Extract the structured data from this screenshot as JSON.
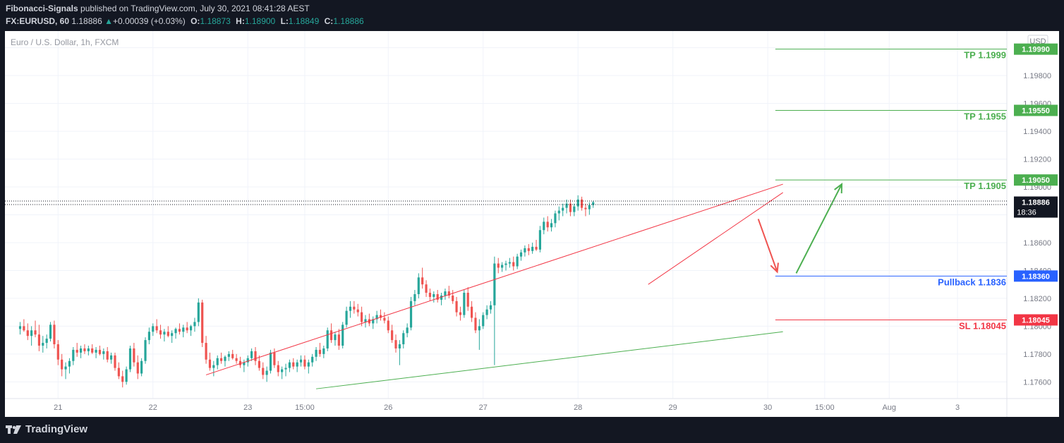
{
  "header": {
    "publisher": "Fibonacci-Signals",
    "published_text": "published on TradingView.com, July 30, 2021 08:41:28 AEST",
    "symbol": "FX:EURUSD, 60",
    "last": "1.18886",
    "arrow": "▲",
    "change": "+0.00039 (+0.03%)",
    "o_label": "O:",
    "o": "1.18873",
    "h_label": "H:",
    "h": "1.18900",
    "l_label": "L:",
    "l": "1.18849",
    "c_label": "C:",
    "c": "1.18886"
  },
  "symbol_desc": "Euro / U.S. Dollar, 1h, FXCM",
  "currency": "USD",
  "footer": {
    "logo_text": "TradingView",
    "logo_icon": "tradingview-logo-icon"
  },
  "colors": {
    "bull": "#26a69a",
    "bear": "#ef5350",
    "tp": "#4caf50",
    "pullback": "#2962ff",
    "sl": "#f23645",
    "channel": "#f23645",
    "support": "#4caf50",
    "axis_text": "#787b86",
    "grid": "#f0f3fa"
  },
  "chart_data": {
    "type": "candlestick",
    "symbol": "FX:EURUSD",
    "timeframe": "1h",
    "ylim": [
      1.1748,
      1.2012
    ],
    "y_ticks": [
      1.176,
      1.178,
      1.18,
      1.182,
      1.184,
      1.186,
      1.188,
      1.19,
      1.192,
      1.194,
      1.196,
      1.198,
      1.2
    ],
    "y_tick_labels": [
      "1.17600",
      "1.17800",
      "1.18000",
      "1.18200",
      "1.18400",
      "1.18600",
      "1.18800",
      "1.19000",
      "1.19200",
      "1.19400",
      "1.19600",
      "1.19800",
      "1.20000"
    ],
    "x_ticks": [
      {
        "label": "21",
        "x": 10
      },
      {
        "label": "22",
        "x": 35
      },
      {
        "label": "23",
        "x": 60
      },
      {
        "label": "15:00",
        "x": 75
      },
      {
        "label": "26",
        "x": 97
      },
      {
        "label": "27",
        "x": 122
      },
      {
        "label": "28",
        "x": 147
      },
      {
        "label": "29",
        "x": 172
      },
      {
        "label": "30",
        "x": 197
      },
      {
        "label": "15:00",
        "x": 212
      },
      {
        "label": "Aug",
        "x": 229
      },
      {
        "label": "3",
        "x": 247
      }
    ],
    "x_range": [
      -4,
      260
    ],
    "last_price": 1.18886,
    "countdown": "18:36",
    "levels": [
      {
        "name": "TP 1.1999",
        "value": 1.1999,
        "tag": "1.19990",
        "kind": "tp"
      },
      {
        "name": "TP 1.1955",
        "value": 1.1955,
        "tag": "1.19550",
        "kind": "tp"
      },
      {
        "name": "TP 1.1905",
        "value": 1.1905,
        "tag": "1.19050",
        "kind": "tp"
      },
      {
        "name": "Pullback 1.1836",
        "value": 1.1836,
        "tag": "1.18360",
        "kind": "pullback"
      },
      {
        "name": "SL 1.18045",
        "value": 1.18045,
        "tag": "1.18045",
        "kind": "sl"
      }
    ],
    "level_start_x": 199,
    "trendlines": [
      {
        "kind": "channel",
        "points": [
          [
            49,
            1.1765
          ],
          [
            201,
            1.1902
          ]
        ]
      },
      {
        "kind": "channel",
        "points": [
          [
            165.5,
            1.183
          ],
          [
            201,
            1.1896
          ]
        ]
      },
      {
        "kind": "support",
        "points": [
          [
            78,
            1.1755
          ],
          [
            201,
            1.1796
          ]
        ]
      }
    ],
    "arrows": [
      {
        "kind": "bear",
        "from": [
          194.5,
          1.1877
        ],
        "to": [
          199.5,
          1.1839
        ]
      },
      {
        "kind": "bull",
        "from": [
          204.5,
          1.1838
        ],
        "to": [
          216.5,
          1.1902
        ]
      }
    ],
    "candles": [
      [
        1.1798,
        1.1803,
        1.1794,
        1.18
      ],
      [
        1.18,
        1.1805,
        1.1796,
        1.1797
      ],
      [
        1.1797,
        1.1802,
        1.179,
        1.1793
      ],
      [
        1.1793,
        1.18,
        1.1786,
        1.1797
      ],
      [
        1.1797,
        1.1804,
        1.1792,
        1.1794
      ],
      [
        1.1794,
        1.1801,
        1.1782,
        1.1786
      ],
      [
        1.1786,
        1.1793,
        1.1781,
        1.1788
      ],
      [
        1.1788,
        1.1794,
        1.1784,
        1.1791
      ],
      [
        1.1791,
        1.1803,
        1.1789,
        1.1801
      ],
      [
        1.1801,
        1.1804,
        1.1784,
        1.1787
      ],
      [
        1.1787,
        1.179,
        1.1772,
        1.1776
      ],
      [
        1.1776,
        1.178,
        1.1764,
        1.1769
      ],
      [
        1.1769,
        1.1774,
        1.1762,
        1.1771
      ],
      [
        1.1771,
        1.1777,
        1.1766,
        1.1775
      ],
      [
        1.1775,
        1.1785,
        1.1772,
        1.1783
      ],
      [
        1.1783,
        1.1788,
        1.1778,
        1.1781
      ],
      [
        1.1781,
        1.1786,
        1.1777,
        1.1784
      ],
      [
        1.1784,
        1.1787,
        1.178,
        1.1782
      ],
      [
        1.1782,
        1.1786,
        1.1779,
        1.1784
      ],
      [
        1.1784,
        1.1787,
        1.178,
        1.1781
      ],
      [
        1.1781,
        1.1785,
        1.1777,
        1.1783
      ],
      [
        1.1783,
        1.1786,
        1.1779,
        1.178
      ],
      [
        1.178,
        1.1784,
        1.1776,
        1.1782
      ],
      [
        1.1782,
        1.1785,
        1.1774,
        1.1776
      ],
      [
        1.1776,
        1.1781,
        1.1773,
        1.1779
      ],
      [
        1.1779,
        1.1781,
        1.1768,
        1.177
      ],
      [
        1.177,
        1.1774,
        1.1762,
        1.1764
      ],
      [
        1.1764,
        1.1768,
        1.1756,
        1.176
      ],
      [
        1.176,
        1.1771,
        1.1758,
        1.1769
      ],
      [
        1.1769,
        1.1786,
        1.1767,
        1.1784
      ],
      [
        1.1784,
        1.1788,
        1.1771,
        1.1774
      ],
      [
        1.1774,
        1.1779,
        1.1762,
        1.1766
      ],
      [
        1.1766,
        1.1777,
        1.1764,
        1.1775
      ],
      [
        1.1775,
        1.1792,
        1.1773,
        1.179
      ],
      [
        1.179,
        1.1799,
        1.1787,
        1.1796
      ],
      [
        1.1796,
        1.1802,
        1.1793,
        1.18
      ],
      [
        1.18,
        1.1805,
        1.1795,
        1.1797
      ],
      [
        1.1797,
        1.1801,
        1.1791,
        1.1794
      ],
      [
        1.1794,
        1.1798,
        1.1789,
        1.1796
      ],
      [
        1.1796,
        1.18,
        1.1792,
        1.1793
      ],
      [
        1.1793,
        1.1797,
        1.1788,
        1.1795
      ],
      [
        1.1795,
        1.1799,
        1.1791,
        1.1798
      ],
      [
        1.1798,
        1.1802,
        1.1794,
        1.1796
      ],
      [
        1.1796,
        1.1801,
        1.1792,
        1.1799
      ],
      [
        1.1799,
        1.1803,
        1.1795,
        1.1797
      ],
      [
        1.1797,
        1.1801,
        1.1793,
        1.18
      ],
      [
        1.18,
        1.1806,
        1.1796,
        1.1803
      ],
      [
        1.1803,
        1.182,
        1.18,
        1.1817
      ],
      [
        1.1817,
        1.1819,
        1.1785,
        1.1788
      ],
      [
        1.1788,
        1.1793,
        1.1773,
        1.1776
      ],
      [
        1.1776,
        1.1781,
        1.1768,
        1.177
      ],
      [
        1.177,
        1.1775,
        1.1764,
        1.1772
      ],
      [
        1.1772,
        1.1779,
        1.1769,
        1.1777
      ],
      [
        1.1777,
        1.1781,
        1.1773,
        1.1775
      ],
      [
        1.1775,
        1.1779,
        1.1771,
        1.1778
      ],
      [
        1.1778,
        1.1782,
        1.1775,
        1.178
      ],
      [
        1.178,
        1.1783,
        1.1776,
        1.1777
      ],
      [
        1.1777,
        1.178,
        1.1773,
        1.1775
      ],
      [
        1.1775,
        1.1778,
        1.177,
        1.1772
      ],
      [
        1.1772,
        1.1776,
        1.1767,
        1.1774
      ],
      [
        1.1774,
        1.1779,
        1.1771,
        1.1777
      ],
      [
        1.1777,
        1.1784,
        1.1775,
        1.1782
      ],
      [
        1.1782,
        1.1785,
        1.1772,
        1.1775
      ],
      [
        1.1775,
        1.1779,
        1.1768,
        1.177
      ],
      [
        1.177,
        1.1774,
        1.1762,
        1.1765
      ],
      [
        1.1765,
        1.1771,
        1.176,
        1.1768
      ],
      [
        1.1768,
        1.1783,
        1.1766,
        1.1781
      ],
      [
        1.1781,
        1.1784,
        1.177,
        1.1772
      ],
      [
        1.1772,
        1.1775,
        1.1764,
        1.1767
      ],
      [
        1.1767,
        1.1771,
        1.1762,
        1.1769
      ],
      [
        1.1769,
        1.1773,
        1.1764,
        1.177
      ],
      [
        1.177,
        1.1776,
        1.1767,
        1.1774
      ],
      [
        1.1774,
        1.1777,
        1.1769,
        1.1771
      ],
      [
        1.1771,
        1.1776,
        1.1767,
        1.1774
      ],
      [
        1.1774,
        1.1779,
        1.1771,
        1.1776
      ],
      [
        1.1776,
        1.1779,
        1.1769,
        1.1771
      ],
      [
        1.1771,
        1.1776,
        1.1766,
        1.1774
      ],
      [
        1.1774,
        1.178,
        1.1771,
        1.1778
      ],
      [
        1.1778,
        1.1785,
        1.1775,
        1.1783
      ],
      [
        1.1783,
        1.1788,
        1.1778,
        1.178
      ],
      [
        1.178,
        1.1786,
        1.1777,
        1.1784
      ],
      [
        1.1784,
        1.1799,
        1.1782,
        1.1797
      ],
      [
        1.1797,
        1.1802,
        1.1788,
        1.179
      ],
      [
        1.179,
        1.1796,
        1.1786,
        1.1794
      ],
      [
        1.1794,
        1.1798,
        1.1783,
        1.1786
      ],
      [
        1.1786,
        1.1803,
        1.1784,
        1.1801
      ],
      [
        1.1801,
        1.1814,
        1.1799,
        1.1811
      ],
      [
        1.1811,
        1.1818,
        1.1806,
        1.1814
      ],
      [
        1.1814,
        1.1818,
        1.1809,
        1.1812
      ],
      [
        1.1812,
        1.1816,
        1.1807,
        1.181
      ],
      [
        1.181,
        1.1814,
        1.18,
        1.1803
      ],
      [
        1.1803,
        1.1808,
        1.1799,
        1.1805
      ],
      [
        1.1805,
        1.1809,
        1.18,
        1.1802
      ],
      [
        1.1802,
        1.1807,
        1.1798,
        1.1805
      ],
      [
        1.1805,
        1.1811,
        1.1802,
        1.1808
      ],
      [
        1.1808,
        1.1812,
        1.1804,
        1.1806
      ],
      [
        1.1806,
        1.181,
        1.1802,
        1.1804
      ],
      [
        1.1804,
        1.1807,
        1.1795,
        1.1797
      ],
      [
        1.1797,
        1.1801,
        1.1788,
        1.179
      ],
      [
        1.179,
        1.1794,
        1.1781,
        1.1784
      ],
      [
        1.1784,
        1.179,
        1.1772,
        1.1787
      ],
      [
        1.1787,
        1.1797,
        1.1784,
        1.1795
      ],
      [
        1.1795,
        1.1802,
        1.1792,
        1.1799
      ],
      [
        1.1799,
        1.1821,
        1.1797,
        1.1818
      ],
      [
        1.1818,
        1.1826,
        1.1815,
        1.1823
      ],
      [
        1.1823,
        1.1838,
        1.182,
        1.1835
      ],
      [
        1.1835,
        1.1842,
        1.1827,
        1.183
      ],
      [
        1.183,
        1.1833,
        1.1821,
        1.1824
      ],
      [
        1.1824,
        1.1827,
        1.1818,
        1.1821
      ],
      [
        1.1821,
        1.1825,
        1.1817,
        1.1823
      ],
      [
        1.1823,
        1.1826,
        1.1817,
        1.1819
      ],
      [
        1.1819,
        1.1824,
        1.1815,
        1.1822
      ],
      [
        1.1822,
        1.1827,
        1.1819,
        1.1825
      ],
      [
        1.1825,
        1.1829,
        1.182,
        1.1822
      ],
      [
        1.1822,
        1.1826,
        1.1816,
        1.1818
      ],
      [
        1.1818,
        1.1821,
        1.1807,
        1.181
      ],
      [
        1.181,
        1.1814,
        1.1804,
        1.1808
      ],
      [
        1.1808,
        1.1826,
        1.1806,
        1.1824
      ],
      [
        1.1824,
        1.1828,
        1.1811,
        1.1814
      ],
      [
        1.1814,
        1.1818,
        1.1803,
        1.1806
      ],
      [
        1.1806,
        1.181,
        1.1795,
        1.1797
      ],
      [
        1.1797,
        1.1805,
        1.1783,
        1.18
      ],
      [
        1.18,
        1.181,
        1.1798,
        1.1808
      ],
      [
        1.1808,
        1.1815,
        1.1805,
        1.1812
      ],
      [
        1.1812,
        1.1818,
        1.1809,
        1.1815
      ],
      [
        1.1815,
        1.185,
        1.1772,
        1.1845
      ],
      [
        1.1845,
        1.1849,
        1.1838,
        1.1842
      ],
      [
        1.1842,
        1.1846,
        1.1839,
        1.1844
      ],
      [
        1.1844,
        1.1847,
        1.184,
        1.1845
      ],
      [
        1.1845,
        1.1849,
        1.1842,
        1.1846
      ],
      [
        1.1846,
        1.185,
        1.184,
        1.1843
      ],
      [
        1.1843,
        1.1852,
        1.1841,
        1.185
      ],
      [
        1.185,
        1.1855,
        1.1847,
        1.1853
      ],
      [
        1.1853,
        1.1858,
        1.185,
        1.1856
      ],
      [
        1.1856,
        1.1859,
        1.1851,
        1.1854
      ],
      [
        1.1854,
        1.186,
        1.1852,
        1.1857
      ],
      [
        1.1857,
        1.1862,
        1.1854,
        1.1855
      ],
      [
        1.1855,
        1.1872,
        1.1853,
        1.1869
      ],
      [
        1.1869,
        1.1878,
        1.1866,
        1.1875
      ],
      [
        1.1875,
        1.1879,
        1.1868,
        1.1871
      ],
      [
        1.1871,
        1.1877,
        1.1868,
        1.1874
      ],
      [
        1.1874,
        1.1883,
        1.1871,
        1.1881
      ],
      [
        1.1881,
        1.1886,
        1.1876,
        1.1883
      ],
      [
        1.1883,
        1.1888,
        1.1879,
        1.1885
      ],
      [
        1.1885,
        1.1891,
        1.1881,
        1.1888
      ],
      [
        1.1888,
        1.1891,
        1.1879,
        1.1882
      ],
      [
        1.1882,
        1.1888,
        1.1879,
        1.1886
      ],
      [
        1.1886,
        1.1894,
        1.1883,
        1.1891
      ],
      [
        1.1891,
        1.1893,
        1.1883,
        1.1885
      ],
      [
        1.1885,
        1.1888,
        1.1879,
        1.1884
      ],
      [
        1.1884,
        1.1889,
        1.188,
        1.1887
      ],
      [
        1.1887,
        1.189,
        1.1885,
        1.1889
      ]
    ]
  }
}
